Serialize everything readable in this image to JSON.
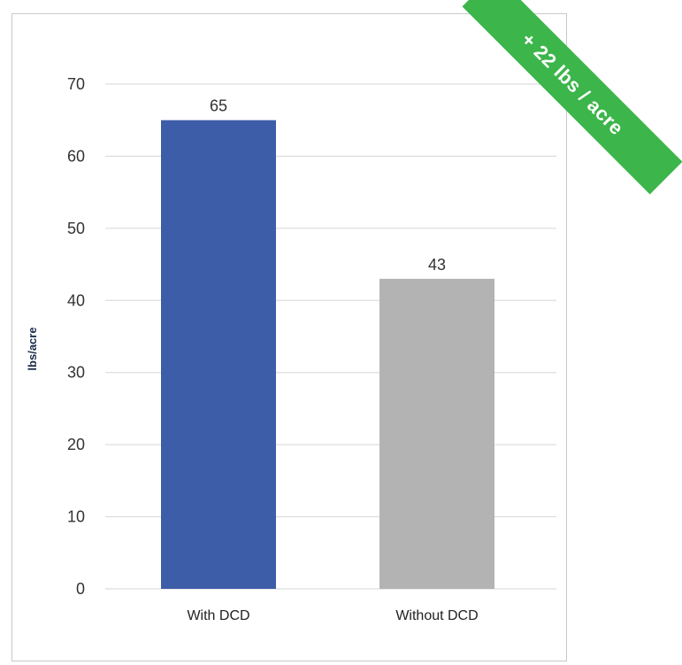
{
  "chart_data": {
    "type": "bar",
    "categories": [
      "With DCD",
      "Without DCD"
    ],
    "values": [
      65,
      43
    ],
    "data_labels": [
      "65",
      "43"
    ],
    "ylabel": "lbs/acre",
    "xlabel": "",
    "ylim": [
      0,
      70
    ],
    "yticks": [
      "0",
      "10",
      "20",
      "30",
      "40",
      "50",
      "60",
      "70"
    ],
    "grid": true,
    "bar_colors": [
      "#3d5da9",
      "#b3b3b3"
    ],
    "callout": "+ 22 lbs / acre",
    "callout_color": "#3cb54a"
  }
}
